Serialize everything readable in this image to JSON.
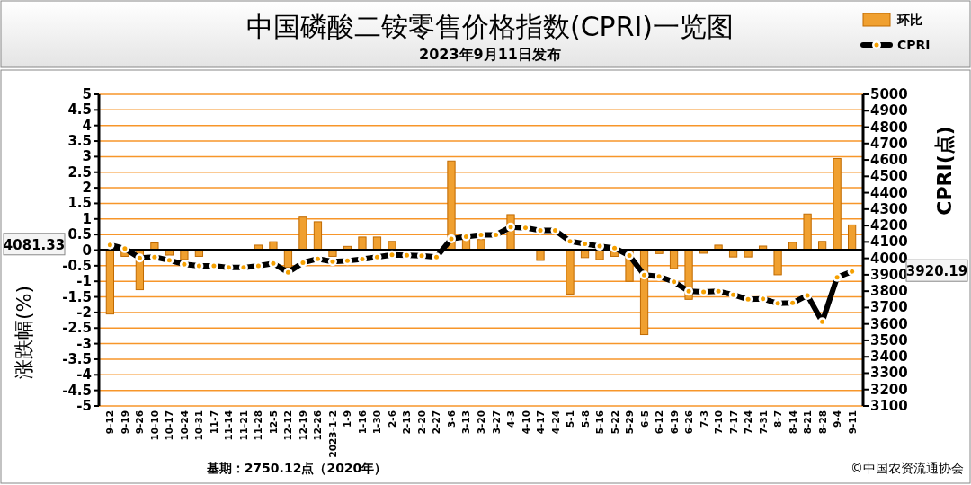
{
  "chart_data": {
    "type": "bar",
    "title": "中国磷酸二铵零售价格指数(CPRI)一览图",
    "subtitle": "2023年9月11日发布",
    "ylabel": "涨跌幅(%)",
    "y2label": "CPRI(点)",
    "categories": [
      "9-12",
      "9-19",
      "9-26",
      "10-10",
      "10-17",
      "10-24",
      "10-31",
      "11-7",
      "11-14",
      "11-21",
      "11-28",
      "12-5",
      "12-12",
      "12-19",
      "12-26",
      "2023-1-2",
      "1-9",
      "1-16",
      "1-30",
      "2-6",
      "2-13",
      "2-20",
      "2-27",
      "3-6",
      "3-13",
      "3-20",
      "3-27",
      "4-3",
      "4-10",
      "4-17",
      "4-24",
      "5-1",
      "5-8",
      "5-16",
      "5-22",
      "5-29",
      "6-5",
      "6-12",
      "6-19",
      "6-26",
      "7-3",
      "7-10",
      "7-17",
      "7-24",
      "7-31",
      "8-7",
      "8-14",
      "8-21",
      "8-28",
      "9-4",
      "9-11"
    ],
    "series": [
      {
        "name": "环比",
        "color": "#f0a030",
        "values": [
          -2.05,
          -0.2,
          -1.27,
          0.23,
          -0.16,
          -0.3,
          -0.2,
          null,
          0,
          0,
          0.16,
          0.27,
          -0.55,
          1.06,
          0.91,
          -0.2,
          0.12,
          0.42,
          0.42,
          0.28,
          0,
          0,
          null,
          2.86,
          0.36,
          0.34,
          0,
          1.14,
          null,
          -0.33,
          0,
          -1.41,
          -0.24,
          -0.3,
          -0.2,
          -1.0,
          -2.71,
          -0.11,
          -0.59,
          -1.58,
          -0.1,
          0.16,
          -0.22,
          -0.22,
          0.13,
          -0.79,
          0.25,
          1.16,
          0.28,
          2.94,
          0.81
        ]
      },
      {
        "name": "CPRI",
        "type": "line",
        "axis": "y2",
        "color": "#000000",
        "marker": "circle",
        "values": [
          4081.33,
          4059,
          4002,
          4008,
          3988,
          3964,
          3954,
          3954,
          3944,
          3944,
          3954,
          3969,
          3914,
          3974,
          3997,
          3980,
          3985,
          3995,
          4008,
          4021,
          4018,
          4016,
          4008,
          4119,
          4132,
          4143,
          4143,
          4191,
          4186,
          4170,
          4170,
          4104,
          4088,
          4074,
          4063,
          4017,
          3898,
          3890,
          3857,
          3799,
          3796,
          3799,
          3778,
          3750,
          3753,
          3725,
          3728,
          3774,
          3613,
          3884,
          3920.19
        ]
      }
    ],
    "ylim": [
      -5,
      5
    ],
    "yticks": [
      -5,
      -4.5,
      -4,
      -3.5,
      -3,
      -2.5,
      -2,
      -1.5,
      -1,
      -0.5,
      0,
      0.5,
      1,
      1.5,
      2,
      2.5,
      3,
      3.5,
      4,
      4.5,
      5
    ],
    "y2lim": [
      3100,
      5000
    ],
    "y2ticks": [
      3100,
      3200,
      3300,
      3400,
      3500,
      3600,
      3700,
      3800,
      3900,
      4000,
      4100,
      4200,
      4300,
      4400,
      4500,
      4600,
      4700,
      4800,
      4900,
      5000
    ],
    "grid": "y",
    "legend": "top right",
    "annotations": [
      "4081.33",
      "3920.19",
      "基期：2750.12点（2020年）",
      "©中国农资流通协会"
    ]
  }
}
